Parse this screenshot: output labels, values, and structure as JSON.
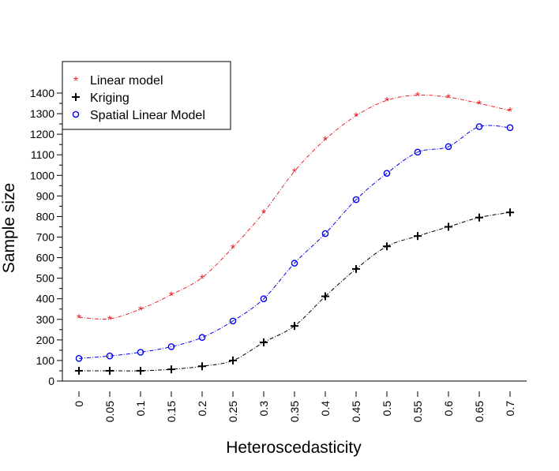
{
  "chart_data": {
    "type": "line",
    "xlabel": "Heteroscedasticity",
    "ylabel": "Sample size",
    "x": [
      0,
      0.05,
      0.1,
      0.15,
      0.2,
      0.25,
      0.3,
      0.35,
      0.4,
      0.45,
      0.5,
      0.55,
      0.6,
      0.65,
      0.7
    ],
    "x_tick_labels": [
      "0",
      "0.05",
      "0.1",
      "0.15",
      "0.2",
      "0.25",
      "0.3",
      "0.35",
      "0.4",
      "0.45",
      "0.5",
      "0.55",
      "0.6",
      "0.65",
      "0.7"
    ],
    "y_ticks": [
      0,
      100,
      200,
      300,
      400,
      500,
      600,
      700,
      800,
      900,
      1000,
      1100,
      1200,
      1300,
      1400
    ],
    "y_tick_labels": [
      "0",
      "100",
      "200",
      "300",
      "400",
      "500",
      "600",
      "700",
      "800",
      "900",
      "1000",
      "1100",
      "1200",
      "1300",
      "1400"
    ],
    "legend_position": "top-left",
    "grid": false,
    "series": [
      {
        "name": "Linear model",
        "marker": "star",
        "color": "#e8262b",
        "values": [
          310,
          303,
          350,
          420,
          503,
          650,
          820,
          1020,
          1175,
          1290,
          1365,
          1390,
          1380,
          1350,
          1315
        ]
      },
      {
        "name": "Kriging",
        "marker": "plus",
        "color": "#000000",
        "values": [
          50,
          50,
          50,
          57,
          72,
          100,
          188,
          268,
          412,
          545,
          655,
          705,
          750,
          795,
          820
        ]
      },
      {
        "name": "Spatial Linear Model",
        "marker": "circle",
        "color": "#0000ee",
        "values": [
          110,
          122,
          140,
          167,
          212,
          292,
          400,
          573,
          717,
          882,
          1010,
          1113,
          1140,
          1237,
          1232
        ]
      }
    ]
  }
}
